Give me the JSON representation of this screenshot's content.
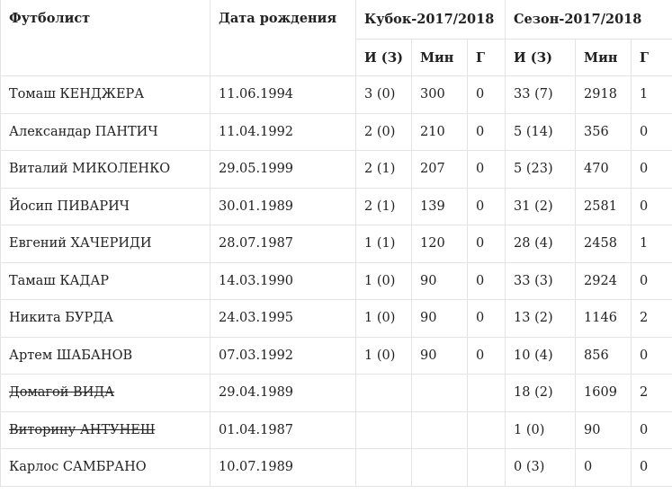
{
  "header": {
    "player": "Футболист",
    "birthdate": "Дата рождения",
    "cup": "Кубок-2017/2018",
    "season": "Сезон-2017/2018",
    "sub": {
      "cup_games": "И (З)",
      "cup_minutes": "Мин",
      "cup_goals": "Г",
      "season_games": "И (З)",
      "season_minutes": "Мин",
      "season_goals": "Г"
    }
  },
  "rows": [
    {
      "name": "Томаш КЕНДЖЕРА",
      "dob": "11.06.1994",
      "cup_games": "3 (0)",
      "cup_min": "300",
      "cup_goals": "0",
      "s_games": "33 (7)",
      "s_min": "2918",
      "s_goals": "1",
      "struck": false
    },
    {
      "name": "Александар ПАНТИЧ",
      "dob": "11.04.1992",
      "cup_games": "2 (0)",
      "cup_min": "210",
      "cup_goals": "0",
      "s_games": "5 (14)",
      "s_min": "356",
      "s_goals": "0",
      "struck": false
    },
    {
      "name": "Виталий МИКОЛЕНКО",
      "dob": "29.05.1999",
      "cup_games": "2 (1)",
      "cup_min": "207",
      "cup_goals": "0",
      "s_games": "5 (23)",
      "s_min": "470",
      "s_goals": "0",
      "struck": false
    },
    {
      "name": "Йосип ПИВАРИЧ",
      "dob": "30.01.1989",
      "cup_games": "2 (1)",
      "cup_min": "139",
      "cup_goals": "0",
      "s_games": "31 (2)",
      "s_min": "2581",
      "s_goals": "0",
      "struck": false
    },
    {
      "name": "Евгений ХАЧЕРИДИ",
      "dob": "28.07.1987",
      "cup_games": "1 (1)",
      "cup_min": "120",
      "cup_goals": "0",
      "s_games": "28 (4)",
      "s_min": "2458",
      "s_goals": "1",
      "struck": false
    },
    {
      "name": "Тамаш КАДАР",
      "dob": "14.03.1990",
      "cup_games": "1 (0)",
      "cup_min": "90",
      "cup_goals": "0",
      "s_games": "33 (3)",
      "s_min": "2924",
      "s_goals": "0",
      "struck": false
    },
    {
      "name": "Никита БУРДА",
      "dob": "24.03.1995",
      "cup_games": "1 (0)",
      "cup_min": "90",
      "cup_goals": "0",
      "s_games": "13 (2)",
      "s_min": "1146",
      "s_goals": "2",
      "struck": false
    },
    {
      "name": "Артем ШАБАНОВ",
      "dob": "07.03.1992",
      "cup_games": "1 (0)",
      "cup_min": "90",
      "cup_goals": "0",
      "s_games": "10 (4)",
      "s_min": "856",
      "s_goals": "0",
      "struck": false
    },
    {
      "name": "Домагой ВИДА",
      "dob": "29.04.1989",
      "cup_games": "",
      "cup_min": "",
      "cup_goals": "",
      "s_games": "18 (2)",
      "s_min": "1609",
      "s_goals": "2",
      "struck": true
    },
    {
      "name": "Виторину АНТУНЕШ",
      "dob": "01.04.1987",
      "cup_games": "",
      "cup_min": "",
      "cup_goals": "",
      "s_games": "1 (0)",
      "s_min": "90",
      "s_goals": "0",
      "struck": true
    },
    {
      "name": "Карлос САМБРАНО",
      "dob": "10.07.1989",
      "cup_games": "",
      "cup_min": "",
      "cup_goals": "",
      "s_games": "0 (3)",
      "s_min": "0",
      "s_goals": "0",
      "struck": false
    }
  ]
}
